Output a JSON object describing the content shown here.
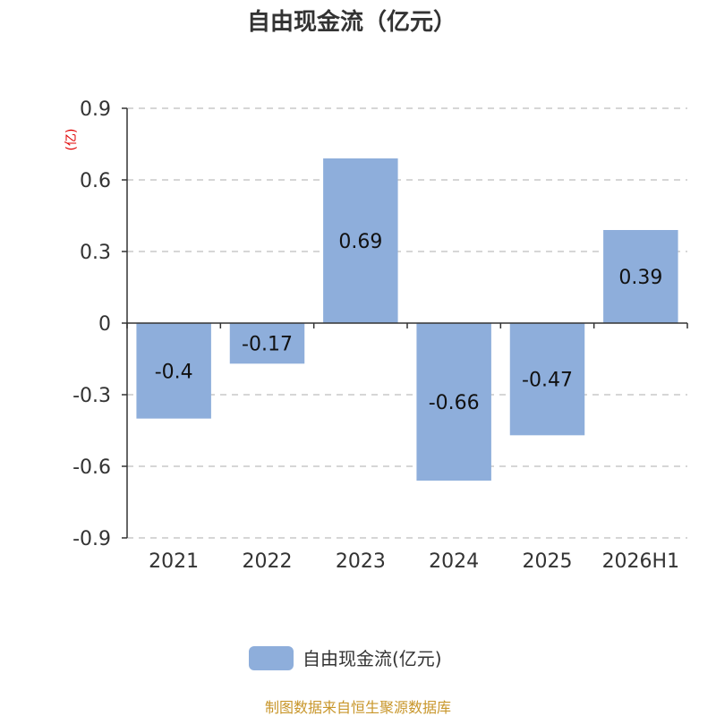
{
  "chart_data": {
    "type": "bar",
    "title": "自由现金流（亿元）",
    "ylabel": "(亿)",
    "categories": [
      "2021",
      "2022",
      "2023",
      "2024",
      "2025",
      "2026H1"
    ],
    "series": [
      {
        "name": "自由现金流(亿元)",
        "values": [
          -0.4,
          -0.17,
          0.69,
          -0.66,
          -0.47,
          0.39
        ],
        "labels": [
          "-0.4",
          "-0.17",
          "0.69",
          "-0.66",
          "-0.47",
          "0.39"
        ],
        "color": "#8eaedb"
      }
    ],
    "ylim": [
      -0.9,
      0.9
    ],
    "yticks": [
      0.9,
      0.6,
      0.3,
      0,
      -0.3,
      -0.6,
      -0.9
    ],
    "ytick_labels": [
      "0.9",
      "0.6",
      "0.3",
      "0",
      "-0.3",
      "-0.6",
      "-0.9"
    ],
    "grid": true,
    "legend": "bottom-center"
  },
  "source_text": "制图数据来自恒生聚源数据库",
  "colors": {
    "bar": "#8eaedb",
    "grid": "#c8c8c8",
    "axis": "#333333",
    "source": "#c8962a",
    "unit": "#e00000"
  }
}
